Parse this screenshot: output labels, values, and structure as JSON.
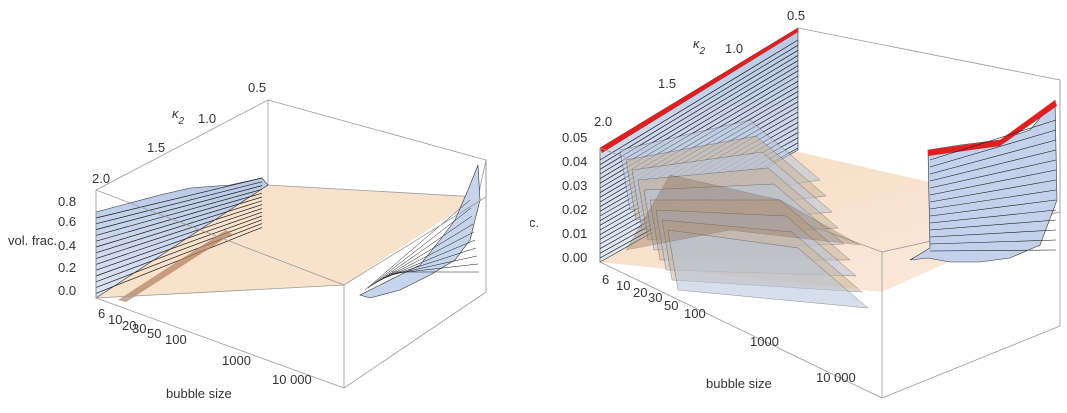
{
  "chart_data": [
    {
      "type": "area",
      "title": "",
      "xlabel": "bubble size",
      "ylabel": "vol. frac.",
      "zlabel": "κ2",
      "x_scale": "log",
      "x_ticks": [
        "6",
        "10",
        "20",
        "30",
        "50",
        "100",
        "1000",
        "10 000"
      ],
      "y_ticks": [
        "0.0",
        "0.2",
        "0.4",
        "0.6",
        "0.8"
      ],
      "z_ticks": [
        "0.5",
        "1.0",
        "1.5",
        "2.0"
      ],
      "zlim": [
        0.5,
        2.0
      ],
      "ylim": [
        0.0,
        0.85
      ],
      "xlim": [
        6,
        15000
      ],
      "grid": false,
      "colors": {
        "surface_bottom": "#f6dcc4",
        "surface_top": "#b7c8e6",
        "peak": "#e02020",
        "contour": "#1a1a1a",
        "box": "#9a9a9a"
      },
      "series": [
        {
          "kappa2": 2.0,
          "x": [
            6,
            7,
            8,
            10,
            15,
            20,
            50,
            100,
            1000,
            3000,
            6000,
            10000,
            13000
          ],
          "y": [
            0.66,
            0.6,
            0.5,
            0.2,
            0.02,
            0.0,
            0.0,
            0.0,
            0.0,
            0.0,
            0.0,
            0.25,
            0.6
          ]
        },
        {
          "kappa2": 1.5,
          "x": [
            6,
            7,
            8,
            10,
            15,
            20,
            50,
            100,
            1000,
            3000,
            6000,
            10000,
            13000
          ],
          "y": [
            0.55,
            0.45,
            0.3,
            0.08,
            0.01,
            0.0,
            0.0,
            0.0,
            0.0,
            0.0,
            0.0,
            0.2,
            0.45
          ]
        },
        {
          "kappa2": 1.0,
          "x": [
            6,
            7,
            8,
            10,
            15,
            20,
            50,
            100,
            1000,
            3000,
            6000,
            10000,
            13000
          ],
          "y": [
            0.4,
            0.3,
            0.15,
            0.03,
            0.0,
            0.0,
            0.0,
            0.0,
            0.0,
            0.0,
            0.05,
            0.15,
            0.35
          ]
        },
        {
          "kappa2": 0.5,
          "x": [
            6,
            7,
            8,
            10,
            15,
            20,
            50,
            100,
            1000,
            3000,
            6000,
            10000,
            13000
          ],
          "y": [
            0.1,
            0.06,
            0.03,
            0.01,
            0.0,
            0.0,
            0.0,
            0.0,
            0.0,
            0.0,
            0.1,
            0.3,
            0.8
          ]
        }
      ]
    },
    {
      "type": "area",
      "title": "",
      "xlabel": "bubble size",
      "ylabel": "vol. frac.",
      "zlabel": "κ2",
      "x_scale": "log",
      "x_ticks": [
        "6",
        "10",
        "20",
        "30",
        "50",
        "100",
        "1000",
        "10 000"
      ],
      "y_ticks": [
        "0.00",
        "0.01",
        "0.02",
        "0.03",
        "0.04",
        "0.05"
      ],
      "z_ticks": [
        "0.5",
        "1.0",
        "1.5",
        "2.0"
      ],
      "zlim": [
        0.5,
        2.0
      ],
      "ylim": [
        0.0,
        0.055
      ],
      "xlim": [
        6,
        15000
      ],
      "grid": false,
      "colors": {
        "surface_bottom": "#f6dcc4",
        "surface_top": "#b7c8e6",
        "peak": "#e02020",
        "contour": "#1a1a1a",
        "box": "#9a9a9a"
      },
      "series": [
        {
          "kappa2": 2.0,
          "x": [
            6,
            7,
            8,
            10,
            15,
            20,
            50,
            100,
            1000,
            3000,
            6000,
            10000,
            13000
          ],
          "y": [
            0.05,
            0.05,
            0.05,
            0.03,
            0.005,
            0.002,
            0.0,
            0.0,
            0.0,
            0.0,
            0.005,
            0.02,
            0.03
          ]
        },
        {
          "kappa2": 1.5,
          "x": [
            6,
            7,
            8,
            10,
            15,
            20,
            50,
            100,
            1000,
            3000,
            6000,
            10000,
            13000
          ],
          "y": [
            0.05,
            0.05,
            0.048,
            0.04,
            0.02,
            0.01,
            0.004,
            0.001,
            0.0,
            0.0,
            0.006,
            0.025,
            0.04
          ]
        },
        {
          "kappa2": 1.0,
          "x": [
            6,
            7,
            8,
            10,
            15,
            20,
            50,
            100,
            1000,
            3000,
            6000,
            10000,
            13000
          ],
          "y": [
            0.05,
            0.05,
            0.05,
            0.045,
            0.035,
            0.03,
            0.02,
            0.01,
            0.002,
            0.0,
            0.01,
            0.03,
            0.045
          ]
        },
        {
          "kappa2": 0.5,
          "x": [
            6,
            7,
            8,
            10,
            15,
            20,
            50,
            100,
            1000,
            3000,
            6000,
            10000,
            13000
          ],
          "y": [
            0.05,
            0.05,
            0.05,
            0.05,
            0.045,
            0.04,
            0.03,
            0.02,
            0.005,
            0.001,
            0.015,
            0.035,
            0.05
          ]
        }
      ]
    }
  ]
}
